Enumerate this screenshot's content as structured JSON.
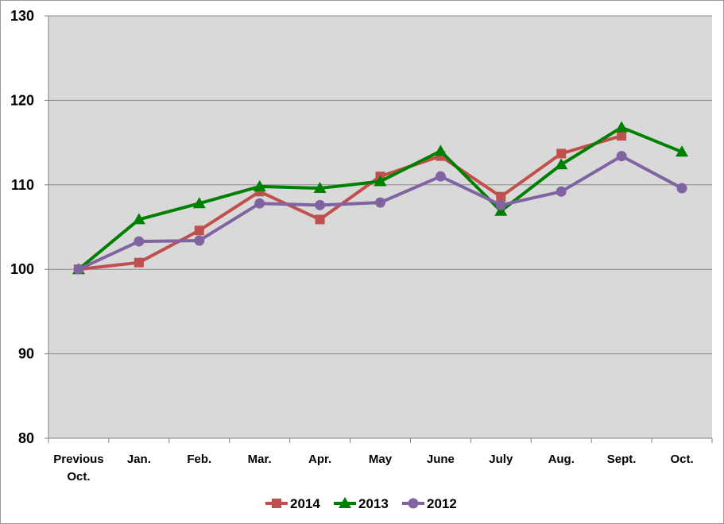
{
  "chart_data": {
    "type": "line",
    "title": "",
    "xlabel": "",
    "ylabel": "",
    "ylim": [
      80,
      130
    ],
    "yticks": [
      80,
      90,
      100,
      110,
      120,
      130
    ],
    "grid": true,
    "legend_position": "bottom",
    "categories": [
      [
        "Previous",
        "Oct."
      ],
      [
        "Jan."
      ],
      [
        "Feb."
      ],
      [
        "Mar."
      ],
      [
        "Apr."
      ],
      [
        "May"
      ],
      [
        "June"
      ],
      [
        "July"
      ],
      [
        "Aug."
      ],
      [
        "Sept."
      ],
      [
        "Oct."
      ]
    ],
    "series": [
      {
        "name": "2014",
        "color": "#C0504D",
        "marker": "square",
        "values": [
          100,
          100.8,
          104.6,
          109.2,
          105.9,
          111.0,
          113.4,
          108.6,
          113.7,
          115.8,
          null
        ]
      },
      {
        "name": "2013",
        "color": "#008000",
        "marker": "triangle",
        "values": [
          100,
          105.9,
          107.8,
          109.8,
          109.6,
          110.4,
          114.0,
          106.9,
          112.4,
          116.8,
          113.9
        ]
      },
      {
        "name": "2012",
        "color": "#8064A2",
        "marker": "circle",
        "values": [
          100,
          103.3,
          103.4,
          107.8,
          107.6,
          107.9,
          111.0,
          107.6,
          109.2,
          113.4,
          109.6
        ]
      }
    ]
  },
  "colors": {
    "plot_background": "#D9D9D9",
    "gridline": "#8C8C8C",
    "axis": "#808080"
  }
}
